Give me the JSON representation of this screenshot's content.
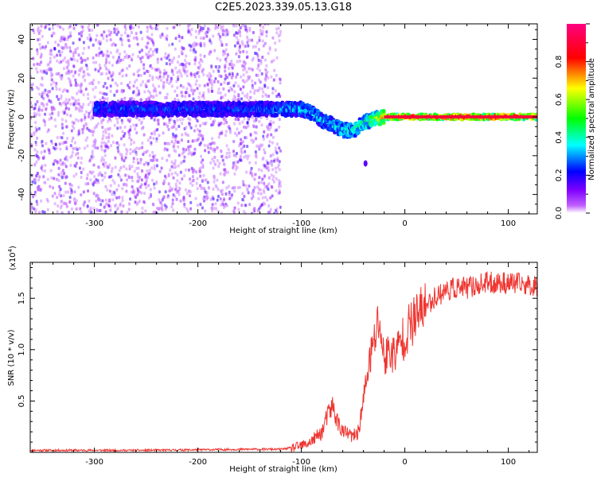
{
  "title": "C2E5.2023.339.05.13.G18",
  "chart_data": [
    {
      "type": "heatmap",
      "xlabel": "Height of straight line (km)",
      "ylabel": "Frequency (Hz)",
      "xlim": [
        -362,
        128
      ],
      "ylim": [
        -50,
        48
      ],
      "xticks": [
        -300,
        -200,
        -100,
        0,
        100
      ],
      "xtick_labels": [
        "-300",
        "-200",
        "-100",
        "0",
        "100"
      ],
      "yticks": [
        -40,
        -20,
        0,
        20,
        40
      ],
      "ytick_labels": [
        "-40",
        "-20",
        "0",
        "20",
        "40"
      ],
      "grid": false,
      "colorbar": {
        "label": "Normalized spectral amplitude",
        "range": [
          0.0,
          1.0
        ],
        "ticks": [
          0.0,
          0.2,
          0.4,
          0.6,
          0.8
        ],
        "tick_labels": [
          "0.0",
          "0.2",
          "0.4",
          "0.6",
          "0.8"
        ],
        "colormap": [
          "#ffffff",
          "#8000ff",
          "#0000ff",
          "#00ffff",
          "#00ff00",
          "#ffff00",
          "#ff0000",
          "#ff0080"
        ]
      },
      "ridge": {
        "x": [
          -300,
          -250,
          -200,
          -150,
          -120,
          -100,
          -90,
          -80,
          -70,
          -60,
          -50,
          -40,
          -30,
          -20,
          -10,
          0,
          50,
          128
        ],
        "frequency": [
          4,
          4,
          4,
          4,
          4,
          4,
          2,
          -2,
          -4,
          -7,
          -7,
          -3,
          -1,
          0,
          0,
          0,
          0,
          0
        ],
        "amplitude": [
          0.3,
          0.3,
          0.3,
          0.3,
          0.35,
          0.4,
          0.4,
          0.4,
          0.4,
          0.45,
          0.45,
          0.5,
          0.6,
          0.9,
          0.9,
          0.95,
          0.95,
          0.95
        ]
      },
      "noise_region": {
        "x_range": [
          -362,
          -120
        ],
        "frequency_range": [
          -50,
          48
        ],
        "amplitude": [
          0.0,
          0.2
        ]
      },
      "outlier": {
        "x": -38,
        "frequency": -24
      }
    },
    {
      "type": "line",
      "xlabel": "Height of straight line (km)",
      "ylabel": "SNR (10 * v/v)",
      "y_multiplier_label": "(x10",
      "y_multiplier_exp": "4",
      "y_multiplier_close": ")",
      "xlim": [
        -362,
        128
      ],
      "ylim": [
        0,
        1.85
      ],
      "xticks": [
        -300,
        -200,
        -100,
        0,
        100
      ],
      "xtick_labels": [
        "-300",
        "-200",
        "-100",
        "0",
        "100"
      ],
      "yticks": [
        0.5,
        1.0,
        1.5
      ],
      "ytick_labels": [
        "0.5",
        "1.0",
        "1.5"
      ],
      "grid": false,
      "color": "#ef3530",
      "series": [
        {
          "x": [
            -362,
            -300,
            -250,
            -200,
            -150,
            -120,
            -105,
            -95,
            -90,
            -80,
            -75,
            -70,
            -65,
            -60,
            -55,
            -50,
            -45,
            -40,
            -35,
            -30,
            -25,
            -20,
            -15,
            -10,
            -5,
            0,
            10,
            20,
            30,
            40,
            50,
            60,
            80,
            100,
            128
          ],
          "values": [
            0.02,
            0.02,
            0.02,
            0.025,
            0.03,
            0.03,
            0.05,
            0.08,
            0.11,
            0.2,
            0.35,
            0.45,
            0.3,
            0.2,
            0.18,
            0.15,
            0.2,
            0.5,
            0.85,
            1.05,
            1.3,
            0.9,
            1.0,
            0.95,
            1.05,
            1.15,
            1.3,
            1.42,
            1.52,
            1.58,
            1.6,
            1.6,
            1.65,
            1.65,
            1.62
          ]
        }
      ]
    }
  ]
}
